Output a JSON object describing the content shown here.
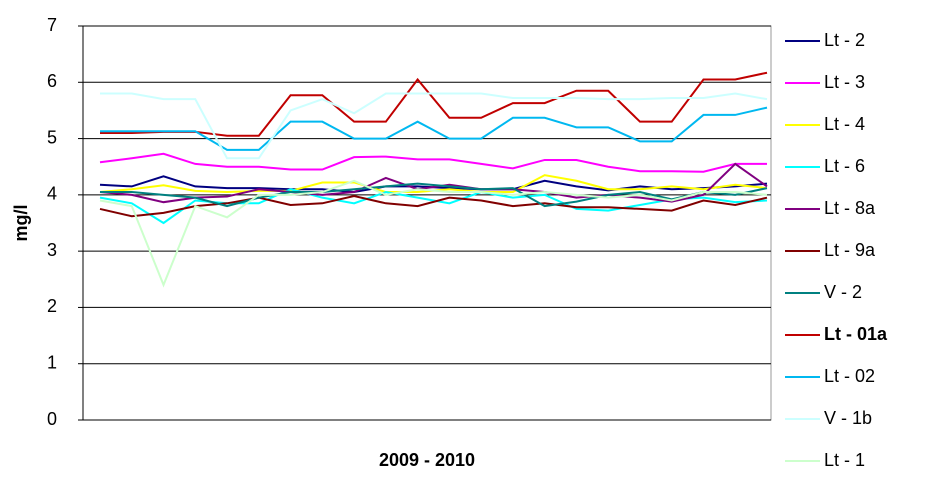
{
  "chart_data": {
    "type": "line",
    "x_label": "2009 - 2010",
    "y_label": "mg/l",
    "categories": [
      null,
      null,
      null,
      null,
      null,
      null,
      null,
      null,
      null,
      null,
      null,
      null,
      null,
      null,
      null,
      null,
      null,
      null,
      null,
      null,
      null,
      null
    ],
    "ylim": [
      0,
      7
    ],
    "yticks": [
      0,
      1,
      2,
      3,
      4,
      5,
      6,
      7
    ],
    "grid": true,
    "legend": "right",
    "series": [
      {
        "name": "Lt - 2",
        "color": "#000080",
        "values": [
          4.18,
          4.15,
          4.33,
          4.15,
          4.12,
          4.12,
          4.1,
          4.1,
          4.05,
          4.15,
          4.15,
          4.12,
          4.1,
          4.1,
          4.25,
          4.15,
          4.08,
          4.15,
          4.1,
          4.12,
          4.15,
          4.2
        ]
      },
      {
        "name": "Lt - 3",
        "color": "#ff00ff",
        "values": [
          4.58,
          4.65,
          4.73,
          4.55,
          4.5,
          4.5,
          4.45,
          4.45,
          4.67,
          4.68,
          4.63,
          4.63,
          4.55,
          4.47,
          4.62,
          4.62,
          4.5,
          4.42,
          4.42,
          4.41,
          4.55,
          4.55
        ]
      },
      {
        "name": "Lt - 4",
        "color": "#ffff00",
        "values": [
          4.05,
          4.1,
          4.17,
          4.07,
          4.05,
          4.07,
          4.07,
          4.22,
          4.22,
          4.05,
          4.05,
          4.1,
          4.05,
          4.05,
          4.35,
          4.25,
          4.1,
          4.1,
          4.15,
          4.1,
          4.18,
          4.12
        ]
      },
      {
        "name": "Lt - 6",
        "color": "#00ffff",
        "values": [
          3.95,
          3.85,
          3.5,
          3.9,
          3.85,
          3.85,
          4.1,
          3.95,
          3.85,
          4.05,
          3.95,
          3.85,
          4.05,
          3.95,
          4.0,
          3.75,
          3.72,
          3.82,
          3.92,
          3.95,
          3.87,
          3.9
        ]
      },
      {
        "name": "Lt - 8a",
        "color": "#800080",
        "values": [
          4.05,
          4.0,
          3.87,
          3.95,
          3.97,
          4.1,
          4.05,
          4.0,
          4.05,
          4.3,
          4.1,
          4.18,
          4.1,
          4.1,
          4.05,
          3.95,
          4.0,
          3.95,
          3.88,
          4.0,
          4.55,
          4.15
        ]
      },
      {
        "name": "Lt - 9a",
        "color": "#800000",
        "values": [
          3.75,
          3.62,
          3.68,
          3.8,
          3.85,
          3.95,
          3.82,
          3.85,
          3.98,
          3.85,
          3.8,
          3.95,
          3.9,
          3.8,
          3.85,
          3.78,
          3.78,
          3.75,
          3.72,
          3.9,
          3.82,
          3.95
        ]
      },
      {
        "name": "V - 2",
        "color": "#008080",
        "values": [
          4.05,
          4.05,
          4.0,
          3.95,
          3.8,
          3.95,
          4.05,
          4.05,
          4.1,
          4.15,
          4.2,
          4.15,
          4.1,
          4.12,
          3.8,
          3.88,
          4.0,
          4.05,
          3.92,
          4.05,
          4.0,
          4.12
        ]
      },
      {
        "name": "Lt - 01a",
        "color": "#c00000",
        "bold": true,
        "values": [
          5.1,
          5.1,
          5.12,
          5.12,
          5.05,
          5.05,
          5.77,
          5.77,
          5.3,
          5.3,
          6.05,
          5.37,
          5.37,
          5.63,
          5.63,
          5.85,
          5.85,
          5.3,
          5.3,
          6.05,
          6.05,
          6.17
        ]
      },
      {
        "name": "Lt - 02",
        "color": "#00b8f0",
        "values": [
          5.13,
          5.13,
          5.13,
          5.13,
          4.8,
          4.8,
          5.3,
          5.3,
          5.0,
          5.0,
          5.3,
          5.0,
          5.0,
          5.37,
          5.37,
          5.2,
          5.2,
          4.95,
          4.95,
          5.42,
          5.42,
          5.55
        ]
      },
      {
        "name": "V - 1b",
        "color": "#ccffff",
        "values": [
          5.8,
          5.8,
          5.7,
          5.7,
          4.65,
          4.65,
          5.5,
          5.7,
          5.45,
          5.8,
          5.8,
          5.8,
          5.8,
          5.72,
          5.72,
          5.72,
          5.7,
          5.7,
          5.72,
          5.72,
          5.8,
          5.7
        ]
      },
      {
        "name": "Lt - 1",
        "color": "#ccffcc",
        "values": [
          3.9,
          3.8,
          2.4,
          3.8,
          3.6,
          4.0,
          4.0,
          4.05,
          4.25,
          4.0,
          4.1,
          4.05,
          4.05,
          4.0,
          4.05,
          4.0,
          3.95,
          4.0,
          3.9,
          4.05,
          4.05,
          4.0
        ]
      }
    ]
  }
}
